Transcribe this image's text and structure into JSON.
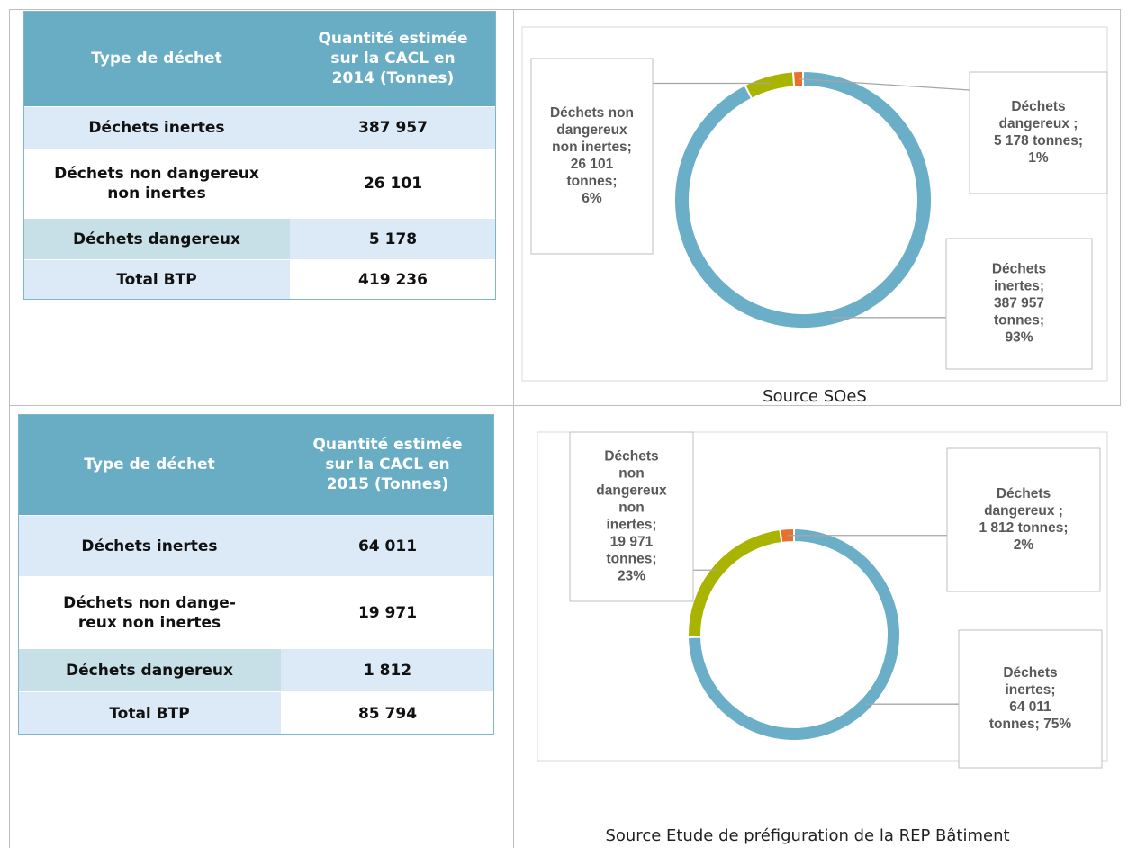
{
  "sections": [
    {
      "table": {
        "header": [
          "Type de déchet",
          "Quantité estimée\nsur la CACL en\n2014 (Tonnes)"
        ],
        "rows": [
          [
            "Déchets inertes",
            "387 957"
          ],
          [
            "Déchets non dangereux\nnon inertes",
            "26 101"
          ],
          [
            "Déchets dangereux",
            "5 178"
          ],
          [
            "Total BTP",
            "419 236"
          ]
        ]
      },
      "chart": {
        "type": "donut",
        "slices": [
          {
            "label_lines": [
              "Déchets",
              "inertes;",
              "387 957",
              "tonnes;",
              "93%"
            ],
            "value": 387957,
            "color": "#6aaec7"
          },
          {
            "label_lines": [
              "Déchets non",
              "dangereux",
              "non inertes;",
              "26 101",
              "tonnes;",
              "6%"
            ],
            "value": 26101,
            "color": "#a8b400"
          },
          {
            "label_lines": [
              "Déchets",
              "dangereux ;",
              "5 178 tonnes;",
              "1%"
            ],
            "value": 5178,
            "color": "#e8702a"
          }
        ]
      },
      "source": "Source SOeS"
    },
    {
      "table": {
        "header": [
          "Type de déchet",
          "Quantité estimée\nsur la CACL en\n2015 (Tonnes)"
        ],
        "rows": [
          [
            "Déchets inertes",
            "64 011"
          ],
          [
            "Déchets non dange-\nreux non inertes",
            "19 971"
          ],
          [
            "Déchets dangereux",
            "1 812"
          ],
          [
            "Total BTP",
            "85 794"
          ]
        ]
      },
      "chart": {
        "type": "donut",
        "slices": [
          {
            "label_lines": [
              "Déchets",
              "inertes;",
              "64 011",
              "tonnes; 75%"
            ],
            "value": 64011,
            "color": "#6aaec7"
          },
          {
            "label_lines": [
              "Déchets",
              "non",
              "dangereux",
              "non",
              "inertes;",
              "19 971",
              "tonnes;",
              "23%"
            ],
            "value": 19971,
            "color": "#a8b400"
          },
          {
            "label_lines": [
              "Déchets",
              "dangereux ;",
              "1 812 tonnes;",
              "2%"
            ],
            "value": 1812,
            "color": "#e8702a"
          }
        ]
      },
      "source": "Source Etude de préfiguration de la REP Bâtiment"
    }
  ]
}
